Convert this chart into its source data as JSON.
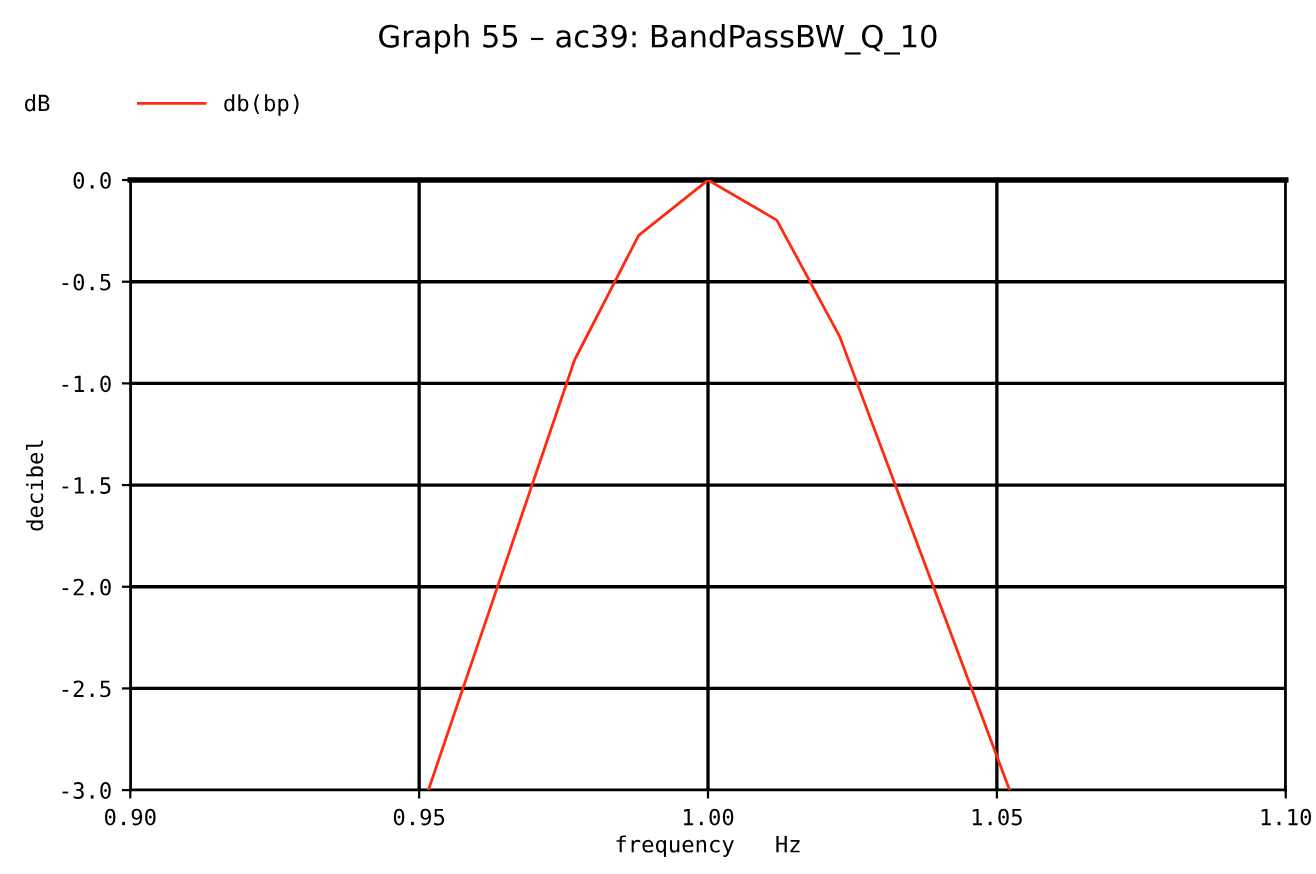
{
  "chart_data": {
    "type": "line",
    "title": "Graph 55 – ac39: BandPassBW_Q_10",
    "xlabel": "frequency   Hz",
    "ylabel": "decibel",
    "annotations": [
      "dB"
    ],
    "x": [
      0.9516,
      0.9769,
      0.988,
      1.0,
      1.0119,
      1.0228,
      1.0522
    ],
    "series": [
      {
        "name": "db(bp)",
        "color": "#ff2a10",
        "values": [
          -3.0,
          -0.885,
          -0.272,
          0.0,
          -0.197,
          -0.77,
          -3.0
        ]
      }
    ],
    "xlim": [
      0.9,
      1.1
    ],
    "xticks": [
      {
        "value": 0.9,
        "label": "0.90"
      },
      {
        "value": 0.95,
        "label": "0.95"
      },
      {
        "value": 1.0,
        "label": "1.00"
      },
      {
        "value": 1.05,
        "label": "1.05"
      },
      {
        "value": 1.1,
        "label": "1.10"
      }
    ],
    "ylim": [
      -3.0,
      0.0
    ],
    "yticks": [
      {
        "value": -3.0,
        "label": "-3.0"
      },
      {
        "value": -2.5,
        "label": "-2.5"
      },
      {
        "value": -2.0,
        "label": "-2.0"
      },
      {
        "value": -1.5,
        "label": "-1.5"
      },
      {
        "value": -1.0,
        "label": "-1.0"
      },
      {
        "value": -0.5,
        "label": "-0.5"
      },
      {
        "value": 0.0,
        "label": "0.0"
      }
    ],
    "grid": true,
    "legend": "top left",
    "marker": "none",
    "line_style": "solid"
  }
}
